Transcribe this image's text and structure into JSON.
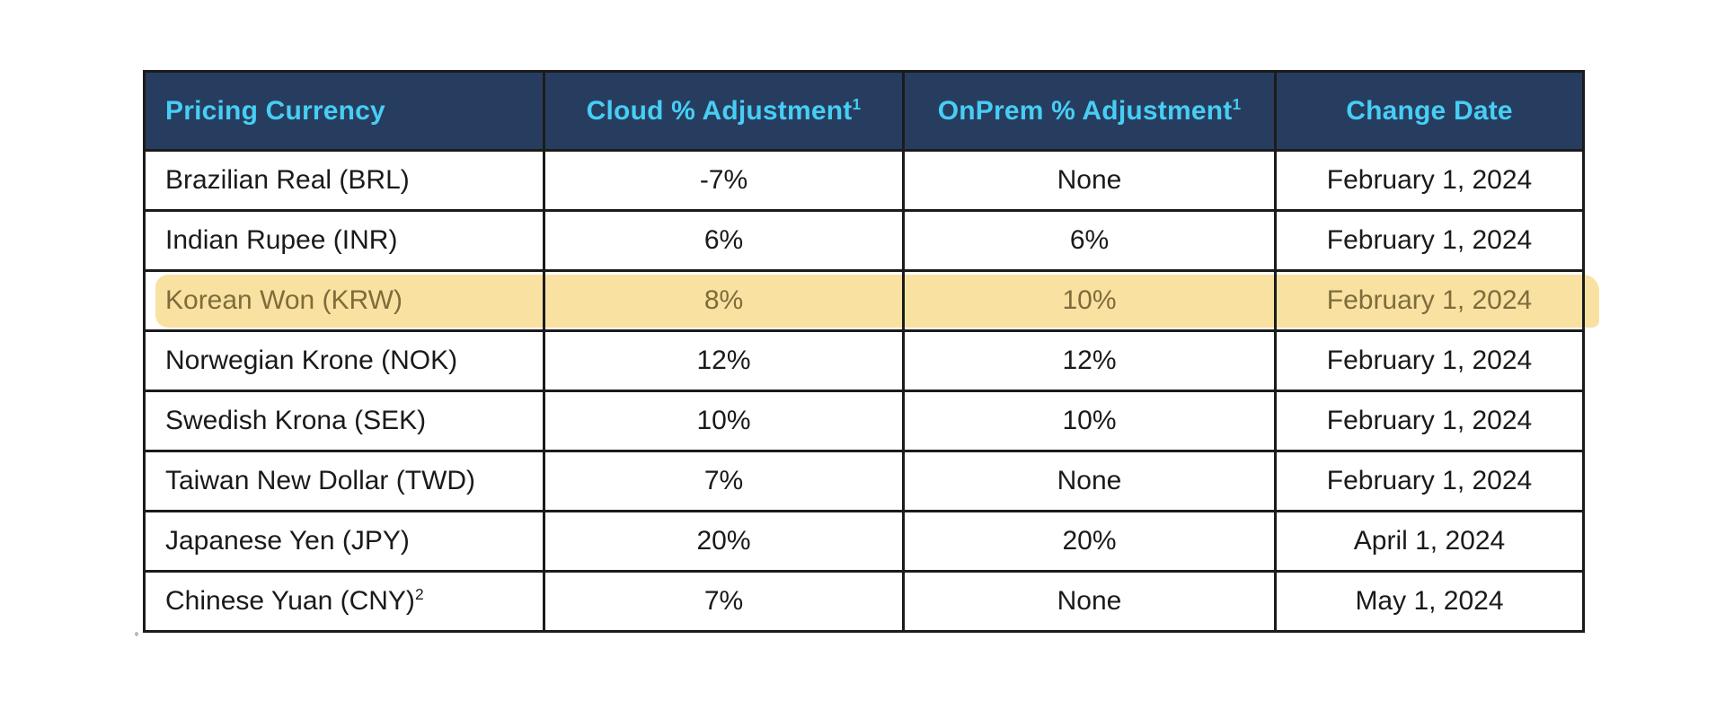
{
  "colors": {
    "header_bg": "#273D60",
    "header_text": "#47CEF4",
    "body_text": "#1A1A1A",
    "border": "#1B1B1B",
    "highlight_bg": "#F9E1A1",
    "highlight_text": "#7E6C3A"
  },
  "header": {
    "columns": [
      {
        "label": "Pricing Currency",
        "sup": ""
      },
      {
        "label": "Cloud % Adjustment",
        "sup": "1"
      },
      {
        "label": "OnPrem % Adjustment",
        "sup": "1"
      },
      {
        "label": "Change Date",
        "sup": ""
      }
    ]
  },
  "rows": [
    {
      "currency": "Brazilian Real (BRL)",
      "sup": "",
      "cloud": "-7%",
      "onprem": "None",
      "date": "February 1, 2024",
      "highlighted": false
    },
    {
      "currency": "Indian Rupee (INR)",
      "sup": "",
      "cloud": "6%",
      "onprem": "6%",
      "date": "February 1, 2024",
      "highlighted": false
    },
    {
      "currency": "Korean Won (KRW)",
      "sup": "",
      "cloud": "8%",
      "onprem": "10%",
      "date": "February 1, 2024",
      "highlighted": true
    },
    {
      "currency": "Norwegian Krone (NOK)",
      "sup": "",
      "cloud": "12%",
      "onprem": "12%",
      "date": "February 1, 2024",
      "highlighted": false
    },
    {
      "currency": "Swedish Krona (SEK)",
      "sup": "",
      "cloud": "10%",
      "onprem": "10%",
      "date": "February 1, 2024",
      "highlighted": false
    },
    {
      "currency": "Taiwan New Dollar (TWD)",
      "sup": "",
      "cloud": "7%",
      "onprem": "None",
      "date": "February 1, 2024",
      "highlighted": false
    },
    {
      "currency": "Japanese Yen (JPY)",
      "sup": "",
      "cloud": "20%",
      "onprem": "20%",
      "date": "April 1, 2024",
      "highlighted": false
    },
    {
      "currency": "Chinese Yuan (CNY)",
      "sup": "2",
      "cloud": "7%",
      "onprem": "None",
      "date": "May 1, 2024",
      "highlighted": false
    }
  ]
}
